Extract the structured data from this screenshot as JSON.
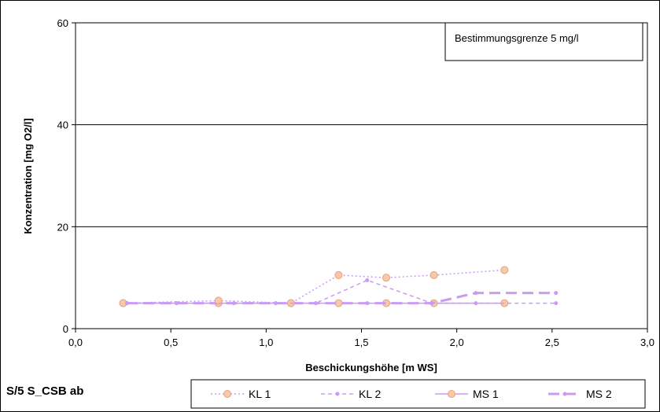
{
  "caption": "S/5 S_CSB ab",
  "annotation": "Bestimmungsgrenze 5 mg/l",
  "chart_data": {
    "type": "line",
    "title": "",
    "xlabel": "Beschickungshöhe [m WS]",
    "ylabel": "Konzentration [mg O2/l]",
    "xlim": [
      0,
      3
    ],
    "ylim": [
      0,
      60
    ],
    "x_ticks": [
      "0,0",
      "0,5",
      "1,0",
      "1,5",
      "2,0",
      "2,5",
      "3,0"
    ],
    "y_ticks": [
      "0",
      "20",
      "40",
      "60"
    ],
    "grid": "horizontal",
    "legend_position": "bottom",
    "series": [
      {
        "name": "KL 1",
        "color": "#C99BF2",
        "style": "dotted",
        "marker": "circle-peach",
        "x": [
          0.25,
          0.75,
          1.13,
          1.38,
          1.63,
          1.88,
          2.25
        ],
        "y": [
          5,
          5.5,
          5,
          10.5,
          10,
          10.5,
          11.5
        ]
      },
      {
        "name": "KL 2",
        "color": "#C99BF2",
        "style": "dashed",
        "marker": "small-dot",
        "x": [
          0.27,
          0.53,
          0.83,
          1.05,
          1.26,
          1.53,
          1.87,
          2.1,
          2.52
        ],
        "y": [
          5,
          5,
          5,
          5,
          5,
          9.5,
          5,
          5,
          5
        ]
      },
      {
        "name": "MS 1",
        "color": "#C99BF2",
        "style": "solid",
        "marker": "circle-peach",
        "x": [
          0.25,
          0.75,
          1.13,
          1.38,
          1.63,
          1.88,
          2.25
        ],
        "y": [
          5,
          5,
          5,
          5,
          5,
          5,
          5
        ]
      },
      {
        "name": "MS 2",
        "color": "#C99BF2",
        "style": "long-dash",
        "marker": "small-dot",
        "x": [
          0.27,
          0.53,
          0.83,
          1.05,
          1.26,
          1.53,
          1.87,
          2.1,
          2.52
        ],
        "y": [
          5,
          5,
          5,
          5,
          5,
          5,
          5,
          7,
          7
        ]
      }
    ]
  }
}
